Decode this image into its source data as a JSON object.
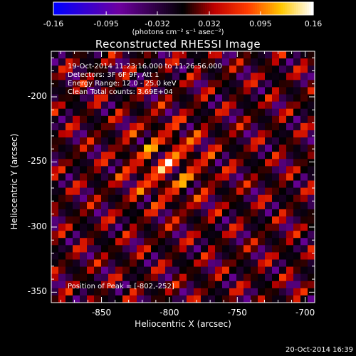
{
  "colorbar": {
    "ticks": [
      "-0.16",
      "-0.095",
      "-0.032",
      "0.032",
      "0.095",
      "0.16"
    ],
    "tick_values": [
      -0.16,
      -0.095,
      -0.032,
      0.032,
      0.095,
      0.16
    ],
    "range": [
      -0.16,
      0.16
    ],
    "units_label": "(photons cm⁻² s⁻¹ asec⁻²)"
  },
  "title": "Reconstructed RHESSI Image",
  "annotations": {
    "time_range": "19-Oct-2014 11:23:16.000 to 11:26:56.000",
    "detectors": "Detectors: 3F 6F 9F, Att 1",
    "energy_range": "Energy Range: 12.0 - 25.0 keV",
    "method_counts": "Clean     Total counts: 3.69E+04",
    "peak_position": "Position of Peak = [-802,-252]"
  },
  "chart_data": {
    "type": "heatmap",
    "title": "Reconstructed RHESSI Image",
    "xlabel": "Heliocentric X (arcsec)",
    "ylabel": "Heliocentric Y (arcsec)",
    "xlim": [
      -887,
      -693
    ],
    "ylim": [
      -358,
      -165
    ],
    "x_ticks": [
      -850,
      -800,
      -750,
      -700
    ],
    "x_tick_labels": [
      "-850",
      "-800",
      "-750",
      "-700"
    ],
    "y_ticks": [
      -200,
      -250,
      -300,
      -350
    ],
    "y_tick_labels": [
      "-200",
      "-250",
      "-300",
      "-350"
    ],
    "peak": [
      -802,
      -252
    ],
    "colormap": "red-temperature",
    "value_range": [
      -0.16,
      0.16
    ]
  },
  "footer": {
    "timestamp": "20-Oct-2014 16:39"
  }
}
